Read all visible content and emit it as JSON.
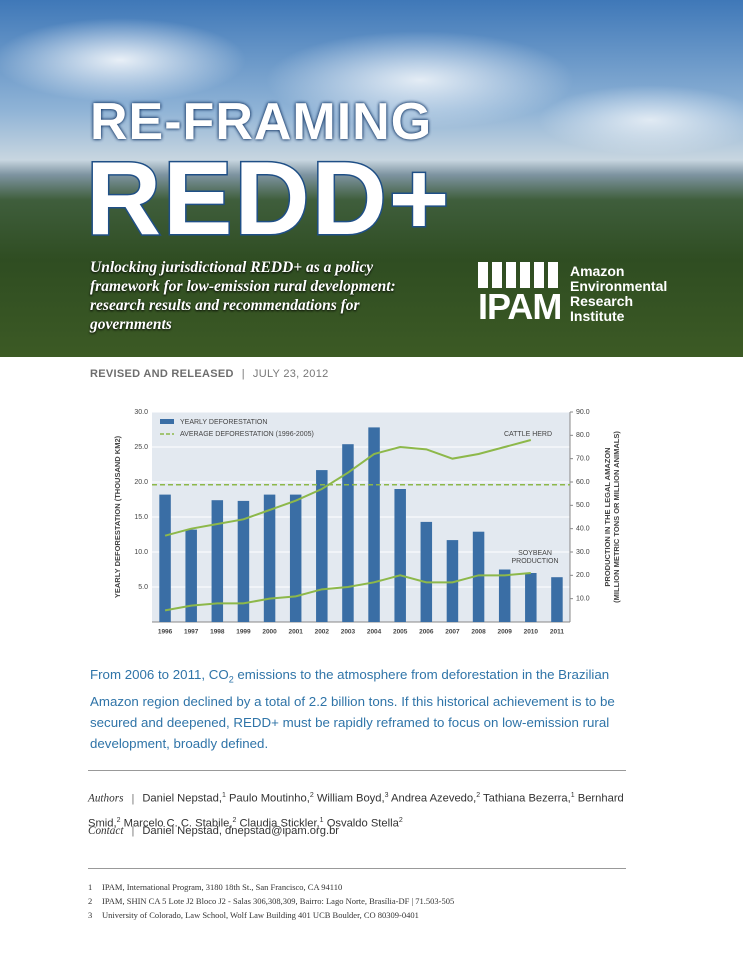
{
  "header": {
    "title_line1": "RE-FRAMING",
    "title_line2": "REDD+",
    "subtitle": "Unlocking jurisdictional REDD+ as a policy framework for low-emission rural development: research results and recommendations for governments",
    "logo": {
      "acronym": "IPAM",
      "name_lines": [
        "Amazon",
        "Environmental",
        "Research",
        "Institute"
      ]
    },
    "status": "REVISED AND RELEASED",
    "date": "JULY 23, 2012"
  },
  "chart_data": {
    "type": "bar",
    "categories": [
      "1996",
      "1997",
      "1998",
      "1999",
      "2000",
      "2001",
      "2002",
      "2003",
      "2004",
      "2005",
      "2006",
      "2007",
      "2008",
      "2009",
      "2010",
      "2011"
    ],
    "ylabel": "YEARLY DEFORESTATION (THOUSAND KM2)",
    "y2label_lines": [
      "PRODUCTION IN THE LEGAL AMAZON",
      "(MILLION METRIC TONS OR MILLION ANIMALS)"
    ],
    "ylim": [
      0,
      30
    ],
    "yticks": [
      {
        "value": 5,
        "label": "5.0"
      },
      {
        "value": 10,
        "label": "10.0"
      },
      {
        "value": 15,
        "label": "15.0"
      },
      {
        "value": 20,
        "label": "20.0"
      },
      {
        "value": 25,
        "label": "25.0"
      },
      {
        "value": 30,
        "label": "30.0"
      }
    ],
    "y2lim": [
      0,
      90
    ],
    "y2ticks": [
      {
        "value": 10,
        "label": "10.0"
      },
      {
        "value": 20,
        "label": "20.0"
      },
      {
        "value": 30,
        "label": "30.0"
      },
      {
        "value": 40,
        "label": "40.0"
      },
      {
        "value": 50,
        "label": "50.0"
      },
      {
        "value": 60,
        "label": "60.0"
      },
      {
        "value": 70,
        "label": "70.0"
      },
      {
        "value": 80,
        "label": "80.0"
      },
      {
        "value": 90,
        "label": "90.0"
      }
    ],
    "grid": true,
    "series": [
      {
        "name": "YEARLY DEFORESTATION",
        "color": "#3a6ea5",
        "values": [
          18.2,
          13.2,
          17.4,
          17.3,
          18.2,
          18.2,
          21.7,
          25.4,
          27.8,
          19.0,
          14.3,
          11.7,
          12.9,
          7.5,
          7.0,
          6.4
        ]
      },
      {
        "name": "AVERAGE DEFORESTATION (1996-2005)",
        "color": "#8db84a",
        "value": 19.6
      },
      {
        "name": "CATTLE HERD",
        "color": "#8db84a",
        "axis": "y2",
        "values": [
          37,
          40,
          42,
          44,
          48,
          52,
          57,
          64,
          72,
          75,
          74,
          70,
          72,
          75,
          78,
          null
        ]
      },
      {
        "name": "SOYBEAN PRODUCTION",
        "color": "#8db84a",
        "axis": "y2",
        "values": [
          5,
          7,
          8,
          8,
          10,
          11,
          14,
          15,
          17,
          20,
          17,
          17,
          20,
          20,
          21,
          null
        ]
      }
    ],
    "annotations": [
      {
        "lines": [
          "CATTLE HERD"
        ]
      },
      {
        "lines": [
          "SOYBEAN",
          "PRODUCTION"
        ]
      }
    ]
  },
  "summary": {
    "before": "From 2006 to 2011, CO",
    "subscript": "2",
    "after": " emissions to the atmosphere from deforestation in the Brazilian Amazon region declined by a total of 2.2 billion tons.  If this historical achievement is to be secured and deepened, REDD+ must be rapidly reframed to focus on low-emission rural development, broadly defined."
  },
  "authors": {
    "label": "Authors",
    "list": [
      {
        "name": "Daniel Nepstad,",
        "affil": "1"
      },
      {
        "name": "Paulo Moutinho,",
        "affil": "2"
      },
      {
        "name": "William Boyd,",
        "affil": "3"
      },
      {
        "name": "Andrea Azevedo,",
        "affil": "2"
      },
      {
        "name": "Tathiana Bezerra,",
        "affil": "1"
      },
      {
        "name": "Bernhard Smid,",
        "affil": "2"
      },
      {
        "name": "Marcelo C. C. Stabile,",
        "affil": "2"
      },
      {
        "name": "Claudia Stickler,",
        "affil": "1"
      },
      {
        "name": "Osvaldo Stella",
        "affil": "2"
      }
    ]
  },
  "contact": {
    "label": "Contact",
    "text": "Daniel Nepstad, dnepstad@ipam.org.br"
  },
  "footnotes": [
    {
      "number": "1",
      "text": "IPAM, International Program, 3180 18th St., San Francisco, CA  94110"
    },
    {
      "number": "2",
      "text": "IPAM, SHIN CA 5 Lote J2 Bloco J2 - Salas 306,308,309, Bairro: Lago Norte, Brasília-DF | 71.503-505"
    },
    {
      "number": "3",
      "text": "University of Colorado, Law School, Wolf Law Building 401 UCB Boulder, CO 80309-0401"
    }
  ]
}
